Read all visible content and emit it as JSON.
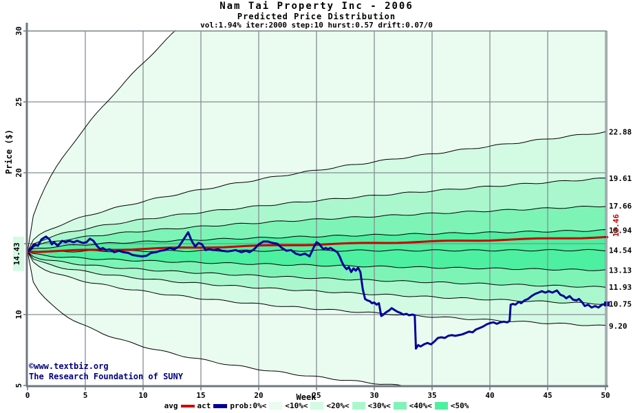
{
  "header": {
    "title": "Nam Tai Property Inc - 2006",
    "subtitle": "Predicted Price Distribution",
    "params": "vol:1.94% iter:2000 step:10 hurst:0.57 drift:0.07/0"
  },
  "watermark": {
    "line1": "©www.textbiz.org",
    "line2": "The Research Foundation of SUNY",
    "color": "#000080"
  },
  "legend": {
    "avg_label": "avg",
    "act_label": "act",
    "prob_labels": [
      "prob:0%<",
      "<10%<",
      "<20%<",
      "<30%<",
      "<40%<",
      "<50%"
    ]
  },
  "chart_data": {
    "type": "fan-line",
    "title": "Nam Tai Property Inc - 2006",
    "subtitle": "Predicted Price Distribution",
    "xlabel": "Week",
    "ylabel": "Price ($)",
    "xlim": [
      0,
      50
    ],
    "ylim": [
      5,
      30
    ],
    "x_ticks": [
      0,
      5,
      10,
      15,
      20,
      25,
      30,
      35,
      40,
      45,
      50
    ],
    "y_ticks": [
      5,
      10,
      15,
      20,
      25,
      30
    ],
    "grid": true,
    "colors": {
      "grid": "#848d94",
      "frame": "#6f787f",
      "boundary": "#000000",
      "avg": "#cc0000",
      "act": "#000099",
      "start_label_bg": "#d5fae4"
    },
    "band_palette": [
      "#e9fcef",
      "#d3fae3",
      "#aaf7cd",
      "#7ef3b6",
      "#4defa0"
    ],
    "start_price": 14.43,
    "start_label": "14.43",
    "avg": {
      "start": 14.43,
      "end": 15.46,
      "end_label": "15.46"
    },
    "fan": {
      "shape_exponent": 0.46,
      "boundaries": [
        {
          "end_week50": 56.8,
          "label": null,
          "virtual": true
        },
        {
          "end_week50": 22.88,
          "label": "22.88",
          "virtual": false
        },
        {
          "end_week50": 19.61,
          "label": "19.61",
          "virtual": false
        },
        {
          "end_week50": 17.66,
          "label": "17.66",
          "virtual": false
        },
        {
          "end_week50": 15.94,
          "label": "15.94",
          "virtual": false
        },
        {
          "end_week50": 14.54,
          "label": "14.54",
          "virtual": false
        },
        {
          "end_week50": 13.13,
          "label": "13.13",
          "virtual": false
        },
        {
          "end_week50": 11.93,
          "label": "11.93",
          "virtual": false
        },
        {
          "end_week50": 10.75,
          "label": "10.75",
          "virtual": false
        },
        {
          "end_week50": 9.2,
          "label": "9.20",
          "virtual": false
        },
        {
          "end_week50": 3.93,
          "label": null,
          "virtual": true
        }
      ]
    },
    "act_series": {
      "points": [
        [
          0,
          14.43
        ],
        [
          0.3,
          14.6
        ],
        [
          0.6,
          14.95
        ],
        [
          0.9,
          14.85
        ],
        [
          1.2,
          15.3
        ],
        [
          1.6,
          15.5
        ],
        [
          1.9,
          15.3
        ],
        [
          2.1,
          14.95
        ],
        [
          2.3,
          15.1
        ],
        [
          2.6,
          14.85
        ],
        [
          3,
          15.2
        ],
        [
          3.3,
          15.1
        ],
        [
          3.6,
          15.2
        ],
        [
          4,
          15.1
        ],
        [
          4.3,
          15.2
        ],
        [
          4.8,
          15.05
        ],
        [
          5.1,
          15.1
        ],
        [
          5.4,
          15.35
        ],
        [
          5.7,
          15.2
        ],
        [
          6,
          14.85
        ],
        [
          6.3,
          14.6
        ],
        [
          6.5,
          14.7
        ],
        [
          6.8,
          14.55
        ],
        [
          7.1,
          14.6
        ],
        [
          7.5,
          14.4
        ],
        [
          7.9,
          14.5
        ],
        [
          8.3,
          14.4
        ],
        [
          8.7,
          14.35
        ],
        [
          9.1,
          14.2
        ],
        [
          9.5,
          14.15
        ],
        [
          9.9,
          14.1
        ],
        [
          10.3,
          14.15
        ],
        [
          10.7,
          14.35
        ],
        [
          11.1,
          14.4
        ],
        [
          11.5,
          14.5
        ],
        [
          11.9,
          14.55
        ],
        [
          12.3,
          14.7
        ],
        [
          12.7,
          14.6
        ],
        [
          13.1,
          14.8
        ],
        [
          13.5,
          15.3
        ],
        [
          13.9,
          15.8
        ],
        [
          14.2,
          15.2
        ],
        [
          14.5,
          14.8
        ],
        [
          14.8,
          15.05
        ],
        [
          15.1,
          14.95
        ],
        [
          15.4,
          14.55
        ],
        [
          15.7,
          14.6
        ],
        [
          16.1,
          14.55
        ],
        [
          16.5,
          14.6
        ],
        [
          16.8,
          14.5
        ],
        [
          17.3,
          14.45
        ],
        [
          17.7,
          14.5
        ],
        [
          18,
          14.55
        ],
        [
          18.5,
          14.4
        ],
        [
          18.9,
          14.5
        ],
        [
          19.2,
          14.4
        ],
        [
          19.6,
          14.6
        ],
        [
          20,
          14.95
        ],
        [
          20.4,
          15.15
        ],
        [
          20.8,
          15.15
        ],
        [
          21.2,
          15.05
        ],
        [
          21.6,
          15
        ],
        [
          22,
          14.7
        ],
        [
          22.4,
          14.5
        ],
        [
          22.8,
          14.55
        ],
        [
          23.2,
          14.3
        ],
        [
          23.6,
          14.2
        ],
        [
          24,
          14.3
        ],
        [
          24.4,
          14.1
        ],
        [
          24.8,
          14.8
        ],
        [
          25,
          15.1
        ],
        [
          25.2,
          15
        ],
        [
          25.4,
          14.8
        ],
        [
          25.6,
          14.6
        ],
        [
          25.8,
          14.7
        ],
        [
          26,
          14.6
        ],
        [
          26.2,
          14.7
        ],
        [
          26.5,
          14.55
        ],
        [
          26.8,
          14.4
        ],
        [
          27,
          14.1
        ],
        [
          27.2,
          13.7
        ],
        [
          27.4,
          13.4
        ],
        [
          27.6,
          13.2
        ],
        [
          27.8,
          13.35
        ],
        [
          28,
          13
        ],
        [
          28.2,
          13.25
        ],
        [
          28.4,
          13.1
        ],
        [
          28.6,
          13.3
        ],
        [
          28.8,
          13
        ],
        [
          29,
          11.8
        ],
        [
          29.2,
          11.1
        ],
        [
          29.4,
          11
        ],
        [
          29.6,
          10.95
        ],
        [
          29.8,
          10.8
        ],
        [
          30,
          10.85
        ],
        [
          30.2,
          10.7
        ],
        [
          30.4,
          10.8
        ],
        [
          30.6,
          9.9
        ],
        [
          30.8,
          10
        ],
        [
          31,
          10.15
        ],
        [
          31.3,
          10.3
        ],
        [
          31.5,
          10.45
        ],
        [
          31.8,
          10.3
        ],
        [
          32,
          10.2
        ],
        [
          32.3,
          10.1
        ],
        [
          32.5,
          10
        ],
        [
          32.8,
          10.05
        ],
        [
          33,
          9.95
        ],
        [
          33.3,
          10
        ],
        [
          33.5,
          9.95
        ],
        [
          33.6,
          7.6
        ],
        [
          33.8,
          7.85
        ],
        [
          34,
          7.75
        ],
        [
          34.3,
          7.9
        ],
        [
          34.6,
          8
        ],
        [
          34.9,
          7.9
        ],
        [
          35.2,
          8.1
        ],
        [
          35.5,
          8.35
        ],
        [
          35.8,
          8.4
        ],
        [
          36.1,
          8.35
        ],
        [
          36.4,
          8.5
        ],
        [
          36.7,
          8.55
        ],
        [
          37,
          8.5
        ],
        [
          37.3,
          8.55
        ],
        [
          37.6,
          8.6
        ],
        [
          37.9,
          8.7
        ],
        [
          38.2,
          8.8
        ],
        [
          38.5,
          8.75
        ],
        [
          38.8,
          8.95
        ],
        [
          39.1,
          9.05
        ],
        [
          39.4,
          9.15
        ],
        [
          39.7,
          9.3
        ],
        [
          40,
          9.4
        ],
        [
          40.3,
          9.45
        ],
        [
          40.6,
          9.35
        ],
        [
          40.9,
          9.45
        ],
        [
          41.2,
          9.5
        ],
        [
          41.5,
          9.45
        ],
        [
          41.7,
          9.55
        ],
        [
          41.8,
          10.7
        ],
        [
          42,
          10.75
        ],
        [
          42.2,
          10.7
        ],
        [
          42.5,
          10.9
        ],
        [
          42.7,
          10.8
        ],
        [
          43,
          11
        ],
        [
          43.3,
          11.1
        ],
        [
          43.6,
          11.3
        ],
        [
          43.9,
          11.45
        ],
        [
          44.2,
          11.55
        ],
        [
          44.5,
          11.65
        ],
        [
          44.8,
          11.55
        ],
        [
          45.1,
          11.65
        ],
        [
          45.4,
          11.55
        ],
        [
          45.8,
          11.7
        ],
        [
          46.1,
          11.4
        ],
        [
          46.4,
          11.3
        ],
        [
          46.6,
          11.15
        ],
        [
          46.9,
          11.3
        ],
        [
          47.2,
          11.05
        ],
        [
          47.5,
          11
        ],
        [
          47.7,
          11.1
        ],
        [
          48,
          10.85
        ],
        [
          48.2,
          10.6
        ],
        [
          48.5,
          10.7
        ],
        [
          48.8,
          10.5
        ],
        [
          49.1,
          10.6
        ],
        [
          49.4,
          10.5
        ],
        [
          49.7,
          10.7
        ],
        [
          50,
          10.75
        ]
      ]
    }
  }
}
